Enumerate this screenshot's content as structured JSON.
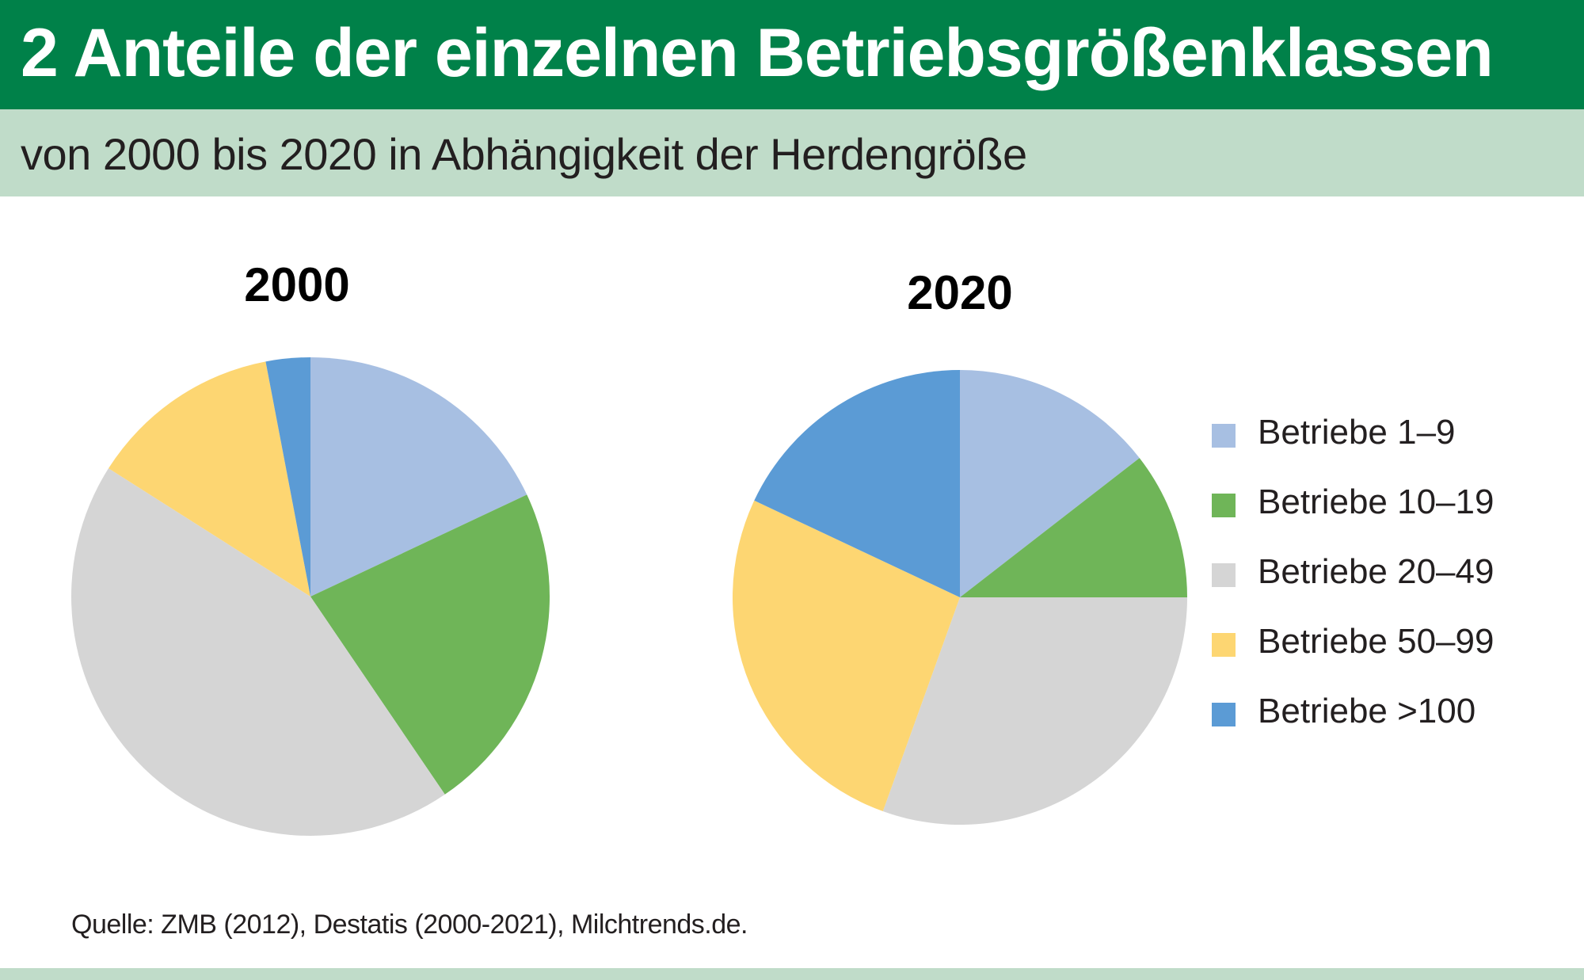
{
  "header": {
    "title": "2 Anteile der einzelnen Betriebsgrößenklassen",
    "subtitle": "von 2000 bis 2020 in Abhängigkeit der Herdengröße"
  },
  "source": "Quelle:  ZMB (2012), Destatis (2000-2021), Milchtrends.de.",
  "colors": {
    "title_bg": "#008149",
    "subtitle_bg": "#c0dcc9"
  },
  "chart_data": [
    {
      "type": "pie",
      "title": "2000",
      "categories": [
        "Betriebe 1–9",
        "Betriebe 10–19",
        "Betriebe 20–49",
        "Betriebe 50–99",
        "Betriebe >100"
      ],
      "values": [
        18.0,
        22.5,
        43.5,
        13.0,
        3.0
      ],
      "unit": "%"
    },
    {
      "type": "pie",
      "title": "2020",
      "categories": [
        "Betriebe 1–9",
        "Betriebe 10–19",
        "Betriebe 20–49",
        "Betriebe 50–99",
        "Betriebe >100"
      ],
      "values": [
        14.5,
        10.5,
        30.5,
        26.5,
        18.0
      ],
      "unit": "%"
    }
  ],
  "legend": {
    "placement": "right",
    "items": [
      {
        "label": "Betriebe 1–9",
        "color": "#a7bfe2"
      },
      {
        "label": "Betriebe 10–19",
        "color": "#6fb558"
      },
      {
        "label": "Betriebe 20–49",
        "color": "#d5d5d5"
      },
      {
        "label": "Betriebe 50–99",
        "color": "#fdd672"
      },
      {
        "label": "Betriebe >100",
        "color": "#5b9bd5"
      }
    ]
  }
}
